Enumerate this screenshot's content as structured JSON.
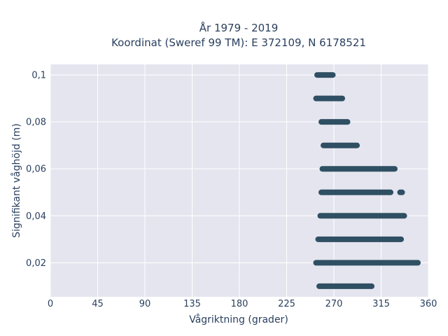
{
  "chart_data": {
    "type": "scatter",
    "title": "År 1979 - 2019",
    "subtitle": "Koordinat (Sweref 99 TM): E 372109, N 6178521",
    "xlabel": "Vågriktning (grader)",
    "ylabel": "Signifikant våghöjd (m)",
    "xlim": [
      0,
      360
    ],
    "ylim": [
      0.0055,
      0.1045
    ],
    "x_ticks": [
      0,
      45,
      90,
      135,
      180,
      225,
      270,
      315,
      360
    ],
    "x_tick_labels": [
      "0",
      "45",
      "90",
      "135",
      "180",
      "225",
      "270",
      "315",
      "360"
    ],
    "y_ticks": [
      0.02,
      0.04,
      0.06,
      0.08,
      0.1
    ],
    "y_tick_labels": [
      "0,02",
      "0,04",
      "0,06",
      "0,08",
      "0,1"
    ],
    "grid": true,
    "marker_color": "#2f4f63",
    "plot_background": "#e5e5ef",
    "series": [
      {
        "points": [
          {
            "y": 0.01,
            "x_start": 256,
            "x_end": 306
          },
          {
            "y": 0.02,
            "x_start": 253,
            "x_end": 350
          },
          {
            "y": 0.03,
            "x_start": 255,
            "x_end": 334
          },
          {
            "y": 0.04,
            "x_start": 257,
            "x_end": 337
          },
          {
            "y": 0.05,
            "x_start": 258,
            "x_end": 324
          },
          {
            "y": 0.05,
            "x_start": 333,
            "x_end": 335
          },
          {
            "y": 0.06,
            "x_start": 259,
            "x_end": 328
          },
          {
            "y": 0.07,
            "x_start": 260,
            "x_end": 292
          },
          {
            "y": 0.08,
            "x_start": 258,
            "x_end": 283
          },
          {
            "y": 0.09,
            "x_start": 253,
            "x_end": 278
          },
          {
            "y": 0.1,
            "x_start": 254,
            "x_end": 269
          }
        ]
      }
    ]
  }
}
